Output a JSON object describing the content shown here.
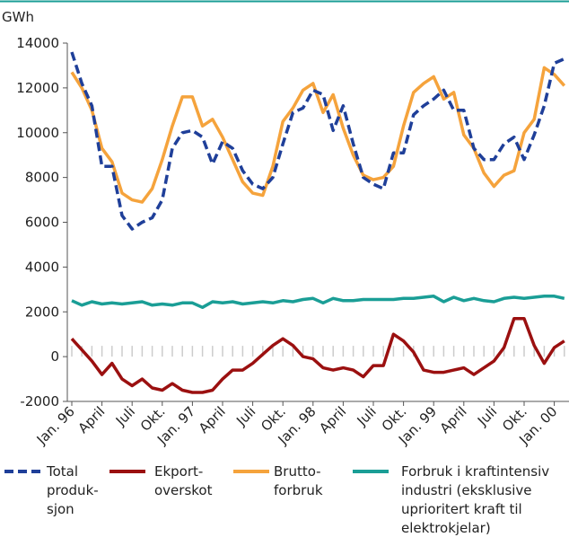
{
  "chart_data": {
    "type": "line",
    "y_label": "GWh",
    "categories": [
      "Jan. 96",
      null,
      null,
      "April",
      null,
      null,
      "Juli",
      null,
      null,
      "Okt.",
      null,
      null,
      "Jan. 97",
      null,
      null,
      "April",
      null,
      null,
      "Juli",
      null,
      null,
      "Okt.",
      null,
      null,
      "Jan. 98",
      null,
      null,
      "April",
      null,
      null,
      "Juli",
      null,
      null,
      "Okt.",
      null,
      null,
      "Jan. 99",
      null,
      null,
      "April",
      null,
      null,
      "Juli",
      null,
      null,
      "Okt.",
      null,
      null,
      "Jan. 00",
      null
    ],
    "ylim": [
      -2000,
      14000
    ],
    "yticks": [
      -2000,
      0,
      2000,
      4000,
      6000,
      8000,
      10000,
      12000,
      14000
    ],
    "grid": false,
    "series": [
      {
        "name": "Total\nproduk-\nsjon",
        "color": "#1f3f99",
        "dashed": true,
        "values": [
          13600,
          12200,
          11200,
          8500,
          8500,
          6300,
          5700,
          6000,
          6200,
          7000,
          9300,
          10000,
          10100,
          9800,
          8600,
          9600,
          9300,
          8300,
          7700,
          7500,
          8000,
          9500,
          10900,
          11100,
          11900,
          11700,
          10100,
          11200,
          9500,
          8000,
          7700,
          7500,
          9100,
          9100,
          10800,
          11200,
          11500,
          11900,
          11000,
          11000,
          9300,
          8800,
          8800,
          9500,
          9800,
          8800,
          9900,
          11200,
          13100,
          13300
        ]
      },
      {
        "name": "Ekport-\noverskot",
        "color": "#9b1010",
        "dashed": false,
        "values": [
          800,
          300,
          -200,
          -800,
          -300,
          -1000,
          -1300,
          -1000,
          -1400,
          -1500,
          -1200,
          -1500,
          -1600,
          -1600,
          -1500,
          -1000,
          -600,
          -600,
          -300,
          100,
          500,
          800,
          500,
          0,
          -100,
          -500,
          -600,
          -500,
          -600,
          -900,
          -400,
          -400,
          1000,
          700,
          200,
          -600,
          -700,
          -700,
          -600,
          -500,
          -800,
          -500,
          -200,
          400,
          1700,
          1700,
          500,
          -300,
          400,
          700
        ]
      },
      {
        "name": "Brutto-\nforbruk",
        "color": "#f5a33c",
        "dashed": false,
        "values": [
          12700,
          12000,
          11000,
          9300,
          8700,
          7300,
          7000,
          6900,
          7500,
          8800,
          10300,
          11600,
          11600,
          10300,
          10600,
          9800,
          8800,
          7800,
          7300,
          7200,
          8500,
          10500,
          11100,
          11900,
          12200,
          10900,
          11700,
          10200,
          9000,
          8100,
          7900,
          8000,
          8500,
          10300,
          11800,
          12200,
          12500,
          11500,
          11800,
          9900,
          9300,
          8200,
          7600,
          8100,
          8300,
          10000,
          10600,
          12900,
          12600,
          12100
        ]
      },
      {
        "name": "Forbruk i kraftintensiv\nindustri (eksklusive\nuprioritert kraft til\nelektrokjelar)",
        "color": "#1a9e96",
        "dashed": false,
        "values": [
          2500,
          2300,
          2450,
          2350,
          2400,
          2350,
          2400,
          2450,
          2300,
          2350,
          2300,
          2400,
          2400,
          2200,
          2450,
          2400,
          2450,
          2350,
          2400,
          2450,
          2400,
          2500,
          2450,
          2550,
          2600,
          2400,
          2600,
          2500,
          2500,
          2550,
          2550,
          2550,
          2550,
          2600,
          2600,
          2650,
          2700,
          2450,
          2650,
          2500,
          2600,
          2500,
          2450,
          2600,
          2650,
          2600,
          2650,
          2700,
          2700,
          2600
        ]
      }
    ]
  }
}
